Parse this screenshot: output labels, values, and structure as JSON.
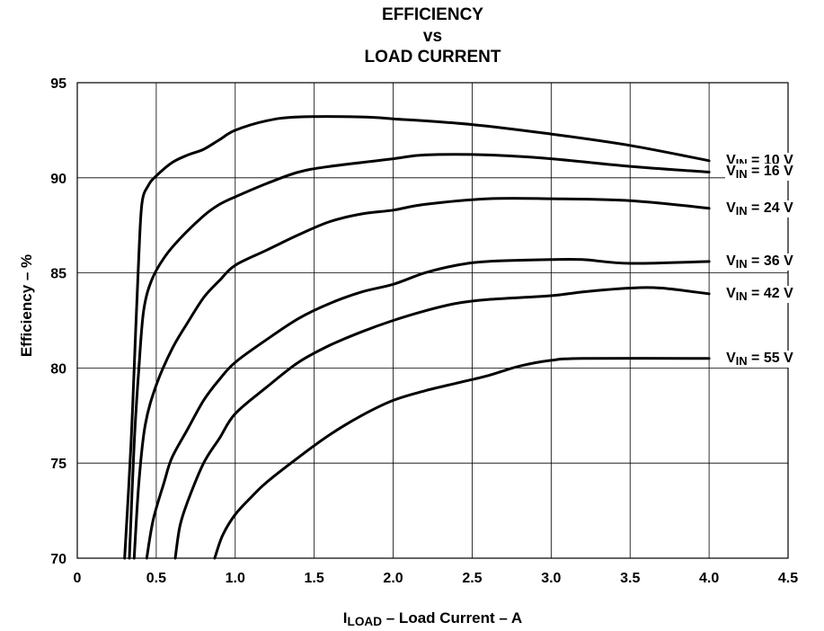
{
  "chart_data": {
    "type": "line",
    "title_lines": [
      "EFFICIENCY",
      "vs",
      "LOAD CURRENT"
    ],
    "xlabel": {
      "main": "I",
      "sub": "LOAD",
      "rest": " – Load Current – A"
    },
    "ylabel": "Efficiency – %",
    "xlim": [
      0,
      4.5
    ],
    "ylim": [
      70,
      95
    ],
    "x_ticks": [
      "0",
      "0.5",
      "1.0",
      "1.5",
      "2.0",
      "2.5",
      "3.0",
      "3.5",
      "4.0",
      "4.5"
    ],
    "y_ticks": [
      "70",
      "75",
      "80",
      "85",
      "90",
      "95"
    ],
    "grid": true,
    "series": [
      {
        "name": "V_IN = 10 V",
        "label_main": "V",
        "label_sub": "IN",
        "label_rest": " = 10 V",
        "points": [
          [
            0.3,
            70
          ],
          [
            0.34,
            76
          ],
          [
            0.37,
            82
          ],
          [
            0.39,
            86
          ],
          [
            0.41,
            88.7
          ],
          [
            0.45,
            89.6
          ],
          [
            0.5,
            90.1
          ],
          [
            0.6,
            90.8
          ],
          [
            0.7,
            91.2
          ],
          [
            0.8,
            91.5
          ],
          [
            0.9,
            92
          ],
          [
            1.0,
            92.5
          ],
          [
            1.2,
            93
          ],
          [
            1.4,
            93.2
          ],
          [
            1.8,
            93.2
          ],
          [
            2.0,
            93.1
          ],
          [
            2.5,
            92.8
          ],
          [
            3.0,
            92.3
          ],
          [
            3.5,
            91.7
          ],
          [
            4.0,
            90.9
          ]
        ]
      },
      {
        "name": "V_IN = 16 V",
        "label_main": "V",
        "label_sub": "IN",
        "label_rest": " = 16 V",
        "points": [
          [
            0.33,
            70
          ],
          [
            0.36,
            76
          ],
          [
            0.39,
            80
          ],
          [
            0.42,
            83
          ],
          [
            0.47,
            84.6
          ],
          [
            0.55,
            85.8
          ],
          [
            0.65,
            86.8
          ],
          [
            0.8,
            88
          ],
          [
            0.9,
            88.6
          ],
          [
            1.0,
            89
          ],
          [
            1.2,
            89.7
          ],
          [
            1.4,
            90.3
          ],
          [
            1.6,
            90.6
          ],
          [
            2.0,
            91
          ],
          [
            2.2,
            91.2
          ],
          [
            2.6,
            91.2
          ],
          [
            3.0,
            91
          ],
          [
            3.5,
            90.6
          ],
          [
            4.0,
            90.3
          ]
        ]
      },
      {
        "name": "V_IN = 24 V",
        "label_main": "V",
        "label_sub": "IN",
        "label_rest": " = 24 V",
        "points": [
          [
            0.36,
            70
          ],
          [
            0.39,
            74
          ],
          [
            0.43,
            77
          ],
          [
            0.5,
            79.1
          ],
          [
            0.6,
            81
          ],
          [
            0.7,
            82.4
          ],
          [
            0.8,
            83.7
          ],
          [
            0.9,
            84.6
          ],
          [
            1.0,
            85.4
          ],
          [
            1.2,
            86.2
          ],
          [
            1.4,
            87
          ],
          [
            1.6,
            87.7
          ],
          [
            1.8,
            88.1
          ],
          [
            2.0,
            88.3
          ],
          [
            2.2,
            88.6
          ],
          [
            2.6,
            88.9
          ],
          [
            3.0,
            88.9
          ],
          [
            3.5,
            88.8
          ],
          [
            4.0,
            88.4
          ]
        ]
      },
      {
        "name": "V_IN = 36 V",
        "label_main": "V",
        "label_sub": "IN",
        "label_rest": " = 36 V",
        "points": [
          [
            0.44,
            70
          ],
          [
            0.48,
            72
          ],
          [
            0.55,
            74
          ],
          [
            0.6,
            75.3
          ],
          [
            0.7,
            76.8
          ],
          [
            0.8,
            78.3
          ],
          [
            0.9,
            79.4
          ],
          [
            1.0,
            80.3
          ],
          [
            1.2,
            81.5
          ],
          [
            1.4,
            82.6
          ],
          [
            1.6,
            83.4
          ],
          [
            1.8,
            84
          ],
          [
            2.0,
            84.4
          ],
          [
            2.2,
            85
          ],
          [
            2.4,
            85.4
          ],
          [
            2.6,
            85.6
          ],
          [
            3.0,
            85.7
          ],
          [
            3.2,
            85.7
          ],
          [
            3.5,
            85.5
          ],
          [
            4.0,
            85.6
          ]
        ]
      },
      {
        "name": "V_IN = 42 V",
        "label_main": "V",
        "label_sub": "IN",
        "label_rest": " = 42 V",
        "points": [
          [
            0.62,
            70
          ],
          [
            0.65,
            71.7
          ],
          [
            0.7,
            73
          ],
          [
            0.8,
            75
          ],
          [
            0.9,
            76.3
          ],
          [
            1.0,
            77.6
          ],
          [
            1.2,
            79
          ],
          [
            1.4,
            80.3
          ],
          [
            1.6,
            81.2
          ],
          [
            1.8,
            81.9
          ],
          [
            2.0,
            82.5
          ],
          [
            2.2,
            83
          ],
          [
            2.4,
            83.4
          ],
          [
            2.6,
            83.6
          ],
          [
            3.0,
            83.8
          ],
          [
            3.2,
            84
          ],
          [
            3.5,
            84.2
          ],
          [
            3.7,
            84.2
          ],
          [
            4.0,
            83.9
          ]
        ]
      },
      {
        "name": "V_IN = 55 V",
        "label_main": "V",
        "label_sub": "IN",
        "label_rest": " = 55 V",
        "points": [
          [
            0.87,
            70
          ],
          [
            0.92,
            71.2
          ],
          [
            1.0,
            72.3
          ],
          [
            1.1,
            73.2
          ],
          [
            1.2,
            74
          ],
          [
            1.4,
            75.3
          ],
          [
            1.6,
            76.5
          ],
          [
            1.8,
            77.5
          ],
          [
            2.0,
            78.3
          ],
          [
            2.2,
            78.8
          ],
          [
            2.4,
            79.2
          ],
          [
            2.6,
            79.6
          ],
          [
            2.8,
            80.1
          ],
          [
            3.0,
            80.4
          ],
          [
            3.2,
            80.5
          ],
          [
            4.0,
            80.5
          ]
        ]
      }
    ]
  }
}
